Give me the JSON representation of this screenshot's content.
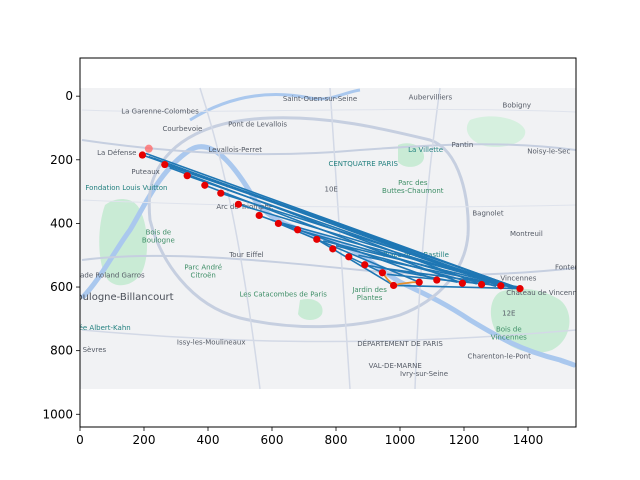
{
  "colors": {
    "figure_bg": "#ffffff",
    "map_land": "#f1f2f4",
    "map_park": "#c9ebd5",
    "map_water": "#aac8ee",
    "map_road": "#ffffff",
    "map_major_road": "#c6cfe0",
    "route_line": "#1f77b4",
    "point": "#e60000",
    "point_highlight": "#ff6b6b",
    "orange_path": "#e8902c",
    "axis": "#000000"
  },
  "map_labels": [
    {
      "name": "Saint-Ouen-sur-Seine",
      "x": 750,
      "y": 15,
      "style": "map-label"
    },
    {
      "name": "Aubervilliers",
      "x": 1095,
      "y": 10,
      "style": "map-label"
    },
    {
      "name": "Bobigny",
      "x": 1365,
      "y": 35,
      "style": "map-label"
    },
    {
      "name": "La Garenne-Colombes",
      "x": 250,
      "y": 55,
      "style": "map-label"
    },
    {
      "name": "Pont de Levallois",
      "x": 555,
      "y": 95,
      "style": "map-label"
    },
    {
      "name": "Courbevoie",
      "x": 320,
      "y": 110,
      "style": "map-label"
    },
    {
      "name": "Levallois-Perret",
      "x": 485,
      "y": 175,
      "style": "map-label"
    },
    {
      "name": "La Défense",
      "x": 115,
      "y": 185,
      "style": "map-label"
    },
    {
      "name": "La Villette",
      "x": 1080,
      "y": 175,
      "style": "map-label-teal"
    },
    {
      "name": "Pantin",
      "x": 1195,
      "y": 160,
      "style": "map-label"
    },
    {
      "name": "Noisy-le-Sec",
      "x": 1465,
      "y": 180,
      "style": "map-label"
    },
    {
      "name": "CENTQUATRE PARIS",
      "x": 885,
      "y": 220,
      "style": "map-label-teal"
    },
    {
      "name": "Puteaux",
      "x": 205,
      "y": 245,
      "style": "map-label"
    },
    {
      "name": "Fondation Louis Vuitton",
      "x": 145,
      "y": 295,
      "style": "map-label-teal"
    },
    {
      "name": "10E",
      "x": 785,
      "y": 300,
      "style": "map-label"
    },
    {
      "name": "Parc des",
      "x": 1040,
      "y": 280,
      "style": "map-label-green"
    },
    {
      "name": "Buttes-Chaumont",
      "x": 1040,
      "y": 305,
      "style": "map-label-green"
    },
    {
      "name": "Arc de Triomphe",
      "x": 515,
      "y": 355,
      "style": "map-label"
    },
    {
      "name": "Bagnolet",
      "x": 1275,
      "y": 375,
      "style": "map-label"
    },
    {
      "name": "Montreuil",
      "x": 1395,
      "y": 440,
      "style": "map-label"
    },
    {
      "name": "Bois de",
      "x": 245,
      "y": 435,
      "style": "map-label-green"
    },
    {
      "name": "Boulogne",
      "x": 245,
      "y": 460,
      "style": "map-label-green"
    },
    {
      "name": "Tour Eiffel",
      "x": 520,
      "y": 505,
      "style": "map-label"
    },
    {
      "name": "Place de la Bastille",
      "x": 1050,
      "y": 505,
      "style": "map-label-teal"
    },
    {
      "name": "Parc André",
      "x": 385,
      "y": 545,
      "style": "map-label-green"
    },
    {
      "name": "Citroën",
      "x": 385,
      "y": 570,
      "style": "map-label-green"
    },
    {
      "name": "Stade Roland Garros",
      "x": 90,
      "y": 570,
      "style": "map-label"
    },
    {
      "name": "Vincennes",
      "x": 1370,
      "y": 580,
      "style": "map-label"
    },
    {
      "name": "Fontenay",
      "x": 1535,
      "y": 545,
      "style": "map-label"
    },
    {
      "name": "Boulogne-Billancourt",
      "x": 130,
      "y": 640,
      "style": "map-label-big"
    },
    {
      "name": "Les Catacombes de Paris",
      "x": 635,
      "y": 630,
      "style": "map-label-green"
    },
    {
      "name": "Château de Vincennes",
      "x": 1455,
      "y": 625,
      "style": "map-label"
    },
    {
      "name": "Jardin des",
      "x": 905,
      "y": 615,
      "style": "map-label-green"
    },
    {
      "name": "Plantes",
      "x": 905,
      "y": 640,
      "style": "map-label-green"
    },
    {
      "name": "Musée Albert-Kahn",
      "x": 55,
      "y": 735,
      "style": "map-label-teal"
    },
    {
      "name": "12E",
      "x": 1340,
      "y": 690,
      "style": "map-label"
    },
    {
      "name": "Bois de",
      "x": 1340,
      "y": 740,
      "style": "map-label-green"
    },
    {
      "name": "Vincennes",
      "x": 1340,
      "y": 765,
      "style": "map-label-green"
    },
    {
      "name": "Issy-les-Moulineaux",
      "x": 410,
      "y": 780,
      "style": "map-label"
    },
    {
      "name": "DÉPARTEMENT DE PARIS",
      "x": 1000,
      "y": 785,
      "style": "map-label"
    },
    {
      "name": "Sèvres",
      "x": 45,
      "y": 805,
      "style": "map-label"
    },
    {
      "name": "Charenton-le-Pont",
      "x": 1310,
      "y": 825,
      "style": "map-label"
    },
    {
      "name": "VAL-DE-MARNE",
      "x": 985,
      "y": 855,
      "style": "map-label"
    },
    {
      "name": "Ivry-sur-Seine",
      "x": 1075,
      "y": 880,
      "style": "map-label"
    }
  ],
  "chart_data": {
    "type": "scatter",
    "title": "",
    "xlabel": "",
    "ylabel": "",
    "xlim": [
      0,
      1550
    ],
    "ylim": [
      1040,
      -120
    ],
    "y_inverted": true,
    "grid": false,
    "xticks": [
      0,
      200,
      400,
      600,
      800,
      1000,
      1200,
      1400
    ],
    "yticks": [
      0,
      200,
      400,
      600,
      800,
      1000
    ],
    "background_image": "map of Paris",
    "image_extent": {
      "x": [
        0,
        1550
      ],
      "y": [
        -20,
        920
      ]
    },
    "points": [
      {
        "x": 195,
        "y": 185
      },
      {
        "x": 265,
        "y": 215
      },
      {
        "x": 335,
        "y": 250
      },
      {
        "x": 390,
        "y": 280
      },
      {
        "x": 440,
        "y": 305
      },
      {
        "x": 495,
        "y": 340
      },
      {
        "x": 560,
        "y": 375
      },
      {
        "x": 620,
        "y": 400
      },
      {
        "x": 680,
        "y": 420
      },
      {
        "x": 740,
        "y": 450
      },
      {
        "x": 790,
        "y": 480
      },
      {
        "x": 840,
        "y": 505
      },
      {
        "x": 890,
        "y": 530
      },
      {
        "x": 945,
        "y": 555
      },
      {
        "x": 980,
        "y": 595
      },
      {
        "x": 1060,
        "y": 585
      },
      {
        "x": 1115,
        "y": 578
      },
      {
        "x": 1195,
        "y": 588
      },
      {
        "x": 1255,
        "y": 592
      },
      {
        "x": 1315,
        "y": 596
      },
      {
        "x": 1375,
        "y": 605
      }
    ],
    "highlight_points": [
      {
        "x": 215,
        "y": 165
      }
    ],
    "route_segments": [
      [
        [
          195,
          185
        ],
        [
          1375,
          605
        ]
      ],
      [
        [
          205,
          180
        ],
        [
          1360,
          600
        ]
      ],
      [
        [
          215,
          190
        ],
        [
          1330,
          598
        ]
      ],
      [
        [
          230,
          195
        ],
        [
          1300,
          592
        ]
      ],
      [
        [
          265,
          215
        ],
        [
          1375,
          605
        ]
      ],
      [
        [
          280,
          225
        ],
        [
          1255,
          592
        ]
      ],
      [
        [
          335,
          250
        ],
        [
          1315,
          596
        ]
      ],
      [
        [
          390,
          280
        ],
        [
          1195,
          588
        ]
      ],
      [
        [
          440,
          305
        ],
        [
          1375,
          605
        ]
      ],
      [
        [
          495,
          340
        ],
        [
          1350,
          602
        ]
      ],
      [
        [
          560,
          375
        ],
        [
          1115,
          578
        ]
      ],
      [
        [
          600,
          390
        ],
        [
          1375,
          605
        ]
      ],
      [
        [
          620,
          400
        ],
        [
          1060,
          585
        ]
      ],
      [
        [
          680,
          420
        ],
        [
          1300,
          598
        ]
      ],
      [
        [
          740,
          450
        ],
        [
          980,
          595
        ]
      ],
      [
        [
          760,
          455
        ],
        [
          1375,
          605
        ]
      ],
      [
        [
          800,
          470
        ],
        [
          1240,
          590
        ]
      ],
      [
        [
          840,
          505
        ],
        [
          945,
          555
        ]
      ],
      [
        [
          870,
          500
        ],
        [
          1375,
          605
        ]
      ],
      [
        [
          890,
          530
        ],
        [
          1180,
          585
        ]
      ],
      [
        [
          940,
          540
        ],
        [
          1375,
          600
        ]
      ],
      [
        [
          960,
          560
        ],
        [
          1315,
          596
        ]
      ],
      [
        [
          980,
          595
        ],
        [
          1375,
          605
        ]
      ]
    ],
    "orange_path": [
      [
        945,
        555
      ],
      [
        960,
        575
      ],
      [
        980,
        595
      ],
      [
        1000,
        590
      ],
      [
        1040,
        585
      ],
      [
        1060,
        585
      ]
    ]
  }
}
